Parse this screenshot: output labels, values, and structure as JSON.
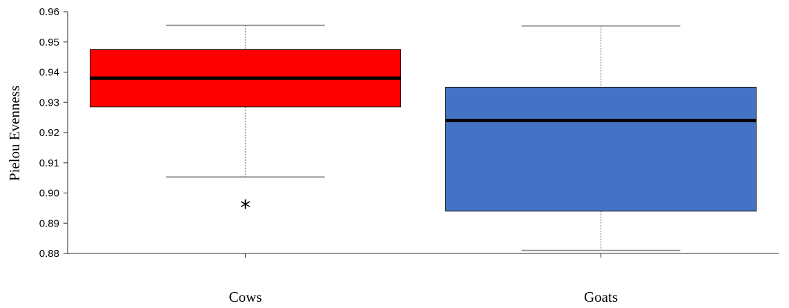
{
  "chart_data": {
    "type": "box",
    "ylabel": "Pielou Evenness",
    "xlabel": "",
    "ylim": [
      0.88,
      0.96
    ],
    "yticks": [
      "0.88",
      "0.89",
      "0.90",
      "0.91",
      "0.92",
      "0.93",
      "0.94",
      "0.95",
      "0.96"
    ],
    "categories": [
      "Cows",
      "Goats"
    ],
    "grid": false,
    "legend": "none",
    "boxes": [
      {
        "category": "Cows",
        "color": "#ff0000",
        "whisker_low": 0.9053,
        "q1": 0.9285,
        "median": 0.938,
        "q3": 0.9475,
        "whisker_high": 0.9555,
        "outliers": [
          {
            "value": 0.8955,
            "marker": "*"
          }
        ]
      },
      {
        "category": "Goats",
        "color": "#4472c4",
        "whisker_low": 0.881,
        "q1": 0.894,
        "median": 0.924,
        "q3": 0.935,
        "whisker_high": 0.9553,
        "outliers": []
      }
    ]
  }
}
